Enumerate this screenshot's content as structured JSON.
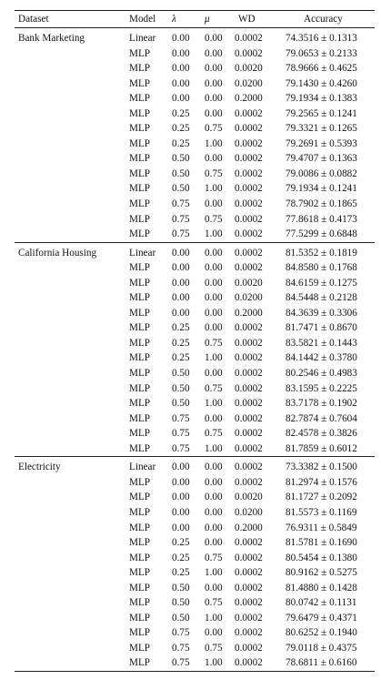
{
  "table": {
    "headers": {
      "dataset": "Dataset",
      "model": "Model",
      "lambda": "λ",
      "mu": "μ",
      "wd": "WD",
      "accuracy": "Accuracy"
    },
    "groups": [
      {
        "dataset": "Bank Marketing",
        "rows": [
          {
            "model": "Linear",
            "lambda": "0.00",
            "mu": "0.00",
            "wd": "0.0002",
            "accuracy": "74.3516 ± 0.1313"
          },
          {
            "model": "MLP",
            "lambda": "0.00",
            "mu": "0.00",
            "wd": "0.0002",
            "accuracy": "79.0653 ± 0.2133"
          },
          {
            "model": "MLP",
            "lambda": "0.00",
            "mu": "0.00",
            "wd": "0.0020",
            "accuracy": "78.9666 ± 0.4625"
          },
          {
            "model": "MLP",
            "lambda": "0.00",
            "mu": "0.00",
            "wd": "0.0200",
            "accuracy": "79.1430 ± 0.4260"
          },
          {
            "model": "MLP",
            "lambda": "0.00",
            "mu": "0.00",
            "wd": "0.2000",
            "accuracy": "79.1934 ± 0.1383"
          },
          {
            "model": "MLP",
            "lambda": "0.25",
            "mu": "0.00",
            "wd": "0.0002",
            "accuracy": "79.2565 ± 0.1241"
          },
          {
            "model": "MLP",
            "lambda": "0.25",
            "mu": "0.75",
            "wd": "0.0002",
            "accuracy": "79.3321 ± 0.1265"
          },
          {
            "model": "MLP",
            "lambda": "0.25",
            "mu": "1.00",
            "wd": "0.0002",
            "accuracy": "79.2691 ± 0.5393"
          },
          {
            "model": "MLP",
            "lambda": "0.50",
            "mu": "0.00",
            "wd": "0.0002",
            "accuracy": "79.4707 ± 0.1363"
          },
          {
            "model": "MLP",
            "lambda": "0.50",
            "mu": "0.75",
            "wd": "0.0002",
            "accuracy": "79.0086 ± 0.0882"
          },
          {
            "model": "MLP",
            "lambda": "0.50",
            "mu": "1.00",
            "wd": "0.0002",
            "accuracy": "79.1934 ± 0.1241"
          },
          {
            "model": "MLP",
            "lambda": "0.75",
            "mu": "0.00",
            "wd": "0.0002",
            "accuracy": "78.7902 ± 0.1865"
          },
          {
            "model": "MLP",
            "lambda": "0.75",
            "mu": "0.75",
            "wd": "0.0002",
            "accuracy": "77.8618 ± 0.4173"
          },
          {
            "model": "MLP",
            "lambda": "0.75",
            "mu": "1.00",
            "wd": "0.0002",
            "accuracy": "77.5299 ± 0.6848"
          }
        ]
      },
      {
        "dataset": "California Housing",
        "rows": [
          {
            "model": "Linear",
            "lambda": "0.00",
            "mu": "0.00",
            "wd": "0.0002",
            "accuracy": "81.5352 ± 0.1819"
          },
          {
            "model": "MLP",
            "lambda": "0.00",
            "mu": "0.00",
            "wd": "0.0002",
            "accuracy": "84.8580 ± 0.1768"
          },
          {
            "model": "MLP",
            "lambda": "0.00",
            "mu": "0.00",
            "wd": "0.0020",
            "accuracy": "84.6159 ± 0.1275"
          },
          {
            "model": "MLP",
            "lambda": "0.00",
            "mu": "0.00",
            "wd": "0.0200",
            "accuracy": "84.5448 ± 0.2128"
          },
          {
            "model": "MLP",
            "lambda": "0.00",
            "mu": "0.00",
            "wd": "0.2000",
            "accuracy": "84.3639 ± 0.3306"
          },
          {
            "model": "MLP",
            "lambda": "0.25",
            "mu": "0.00",
            "wd": "0.0002",
            "accuracy": "81.7471 ± 0.8670"
          },
          {
            "model": "MLP",
            "lambda": "0.25",
            "mu": "0.75",
            "wd": "0.0002",
            "accuracy": "83.5821 ± 0.1443"
          },
          {
            "model": "MLP",
            "lambda": "0.25",
            "mu": "1.00",
            "wd": "0.0002",
            "accuracy": "84.1442 ± 0.3780"
          },
          {
            "model": "MLP",
            "lambda": "0.50",
            "mu": "0.00",
            "wd": "0.0002",
            "accuracy": "80.2546 ± 0.4983"
          },
          {
            "model": "MLP",
            "lambda": "0.50",
            "mu": "0.75",
            "wd": "0.0002",
            "accuracy": "83.1595 ± 0.2225"
          },
          {
            "model": "MLP",
            "lambda": "0.50",
            "mu": "1.00",
            "wd": "0.0002",
            "accuracy": "83.7178 ± 0.1902"
          },
          {
            "model": "MLP",
            "lambda": "0.75",
            "mu": "0.00",
            "wd": "0.0002",
            "accuracy": "82.7874 ± 0.7604"
          },
          {
            "model": "MLP",
            "lambda": "0.75",
            "mu": "0.75",
            "wd": "0.0002",
            "accuracy": "82.4578 ± 0.3826"
          },
          {
            "model": "MLP",
            "lambda": "0.75",
            "mu": "1.00",
            "wd": "0.0002",
            "accuracy": "81.7859 ± 0.6012"
          }
        ]
      },
      {
        "dataset": "Electricity",
        "rows": [
          {
            "model": "Linear",
            "lambda": "0.00",
            "mu": "0.00",
            "wd": "0.0002",
            "accuracy": "73.3382 ± 0.1500"
          },
          {
            "model": "MLP",
            "lambda": "0.00",
            "mu": "0.00",
            "wd": "0.0002",
            "accuracy": "81.2974 ± 0.1576"
          },
          {
            "model": "MLP",
            "lambda": "0.00",
            "mu": "0.00",
            "wd": "0.0020",
            "accuracy": "81.1727 ± 0.2092"
          },
          {
            "model": "MLP",
            "lambda": "0.00",
            "mu": "0.00",
            "wd": "0.0200",
            "accuracy": "81.5573 ± 0.1169"
          },
          {
            "model": "MLP",
            "lambda": "0.00",
            "mu": "0.00",
            "wd": "0.2000",
            "accuracy": "76.9311 ± 0.5849"
          },
          {
            "model": "MLP",
            "lambda": "0.25",
            "mu": "0.00",
            "wd": "0.0002",
            "accuracy": "81.5781 ± 0.1690"
          },
          {
            "model": "MLP",
            "lambda": "0.25",
            "mu": "0.75",
            "wd": "0.0002",
            "accuracy": "80.5454 ± 0.1380"
          },
          {
            "model": "MLP",
            "lambda": "0.25",
            "mu": "1.00",
            "wd": "0.0002",
            "accuracy": "80.9162 ± 0.5275"
          },
          {
            "model": "MLP",
            "lambda": "0.50",
            "mu": "0.00",
            "wd": "0.0002",
            "accuracy": "81.4880 ± 0.1428"
          },
          {
            "model": "MLP",
            "lambda": "0.50",
            "mu": "0.75",
            "wd": "0.0002",
            "accuracy": "80.0742 ± 0.1131"
          },
          {
            "model": "MLP",
            "lambda": "0.50",
            "mu": "1.00",
            "wd": "0.0002",
            "accuracy": "79.6479 ± 0.4371"
          },
          {
            "model": "MLP",
            "lambda": "0.75",
            "mu": "0.00",
            "wd": "0.0002",
            "accuracy": "80.6252 ± 0.1940"
          },
          {
            "model": "MLP",
            "lambda": "0.75",
            "mu": "0.75",
            "wd": "0.0002",
            "accuracy": "79.0118 ± 0.4375"
          },
          {
            "model": "MLP",
            "lambda": "0.75",
            "mu": "1.00",
            "wd": "0.0002",
            "accuracy": "78.6811 ± 0.6160"
          }
        ]
      }
    ]
  }
}
